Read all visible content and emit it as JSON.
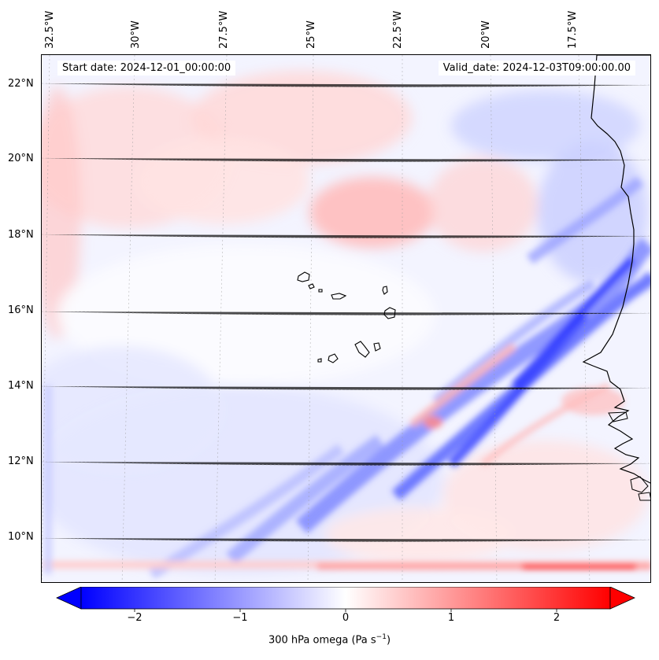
{
  "header": {
    "start_date": "Start date: 2024-12-01_00:00:00",
    "valid_date": "Valid_date: 2024-12-03T09:00:00.00"
  },
  "map": {
    "lon_labels": [
      "32.5°W",
      "30°W",
      "27.5°W",
      "25°W",
      "22.5°W",
      "20°W",
      "17.5°W"
    ],
    "lat_labels": [
      "22°N",
      "20°N",
      "18°N",
      "16°N",
      "14°N",
      "12°N",
      "10°N"
    ],
    "gridlines": true,
    "field": "300 hPa omega",
    "colormap": "bwr",
    "colors": {
      "negative": "#0000ff",
      "neutral": "#ffffff",
      "positive": "#ff0000",
      "coastline": "#000000"
    }
  },
  "colorbar": {
    "label_prefix": "300 hPa omega (Pa s",
    "label_exp": "−1",
    "label_suffix": ")",
    "ticks": [
      "−2",
      "−1",
      "0",
      "1",
      "2"
    ],
    "range": [
      -2.6,
      2.6
    ],
    "extend": "both"
  }
}
